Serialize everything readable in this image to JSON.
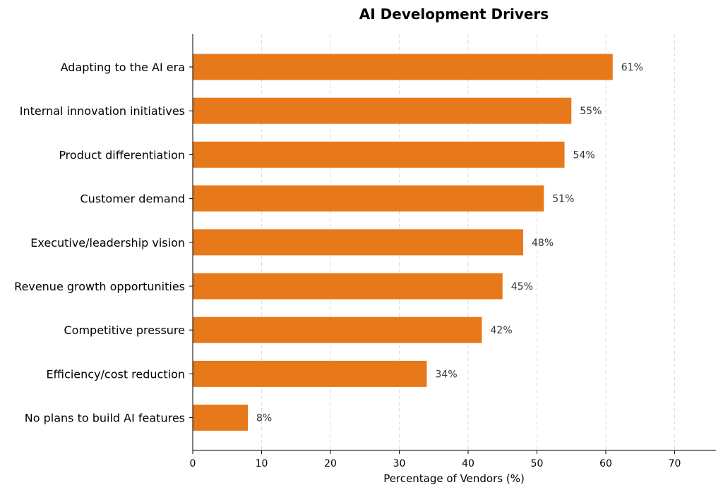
{
  "chart_data": {
    "type": "bar",
    "orientation": "horizontal",
    "title": "AI Development Drivers",
    "xlabel": "Percentage of Vendors (%)",
    "ylabel": "",
    "xlim": [
      0,
      76
    ],
    "xticks": [
      0,
      10,
      20,
      30,
      40,
      50,
      60,
      70
    ],
    "grid": "vertical dashed",
    "bar_color": "#E8791B",
    "categories": [
      "Adapting to the AI era",
      "Internal innovation initiatives",
      "Product differentiation",
      "Customer demand",
      "Executive/leadership vision",
      "Revenue growth opportunities",
      "Competitive pressure",
      "Efficiency/cost reduction",
      "No plans to build AI features"
    ],
    "values": [
      61,
      55,
      54,
      51,
      48,
      45,
      42,
      34,
      8
    ],
    "value_labels": [
      "61%",
      "55%",
      "54%",
      "51%",
      "48%",
      "45%",
      "42%",
      "34%",
      "8%"
    ]
  }
}
